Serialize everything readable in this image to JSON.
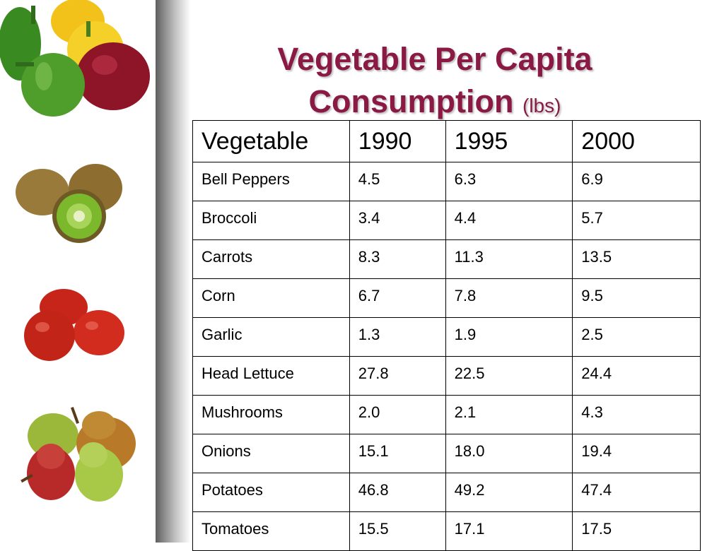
{
  "title": {
    "main": "Vegetable Per Capita Consumption",
    "unit": "(lbs)"
  },
  "table": {
    "headers": [
      "Vegetable",
      "1990",
      "1995",
      "2000"
    ],
    "rows": [
      [
        "Bell Peppers",
        "4.5",
        "6.3",
        "6.9"
      ],
      [
        "Broccoli",
        "3.4",
        "4.4",
        "5.7"
      ],
      [
        "Carrots",
        "8.3",
        "11.3",
        "13.5"
      ],
      [
        "Corn",
        "6.7",
        "7.8",
        "9.5"
      ],
      [
        "Garlic",
        "1.3",
        "1.9",
        "2.5"
      ],
      [
        "Head Lettuce",
        "27.8",
        "22.5",
        "24.4"
      ],
      [
        "Mushrooms",
        "2.0",
        "2.1",
        "4.3"
      ],
      [
        "Onions",
        "15.1",
        "18.0",
        "19.4"
      ],
      [
        "Potatoes",
        "46.8",
        "49.2",
        "47.4"
      ],
      [
        "Tomatoes",
        "15.5",
        "17.1",
        "17.5"
      ]
    ]
  },
  "colors": {
    "title": "#8a1a44",
    "bar_dark": "#5e5e5e"
  },
  "images": [
    "bell-peppers-photo",
    "kiwis-photo",
    "tomatoes-photo",
    "pears-photo"
  ]
}
